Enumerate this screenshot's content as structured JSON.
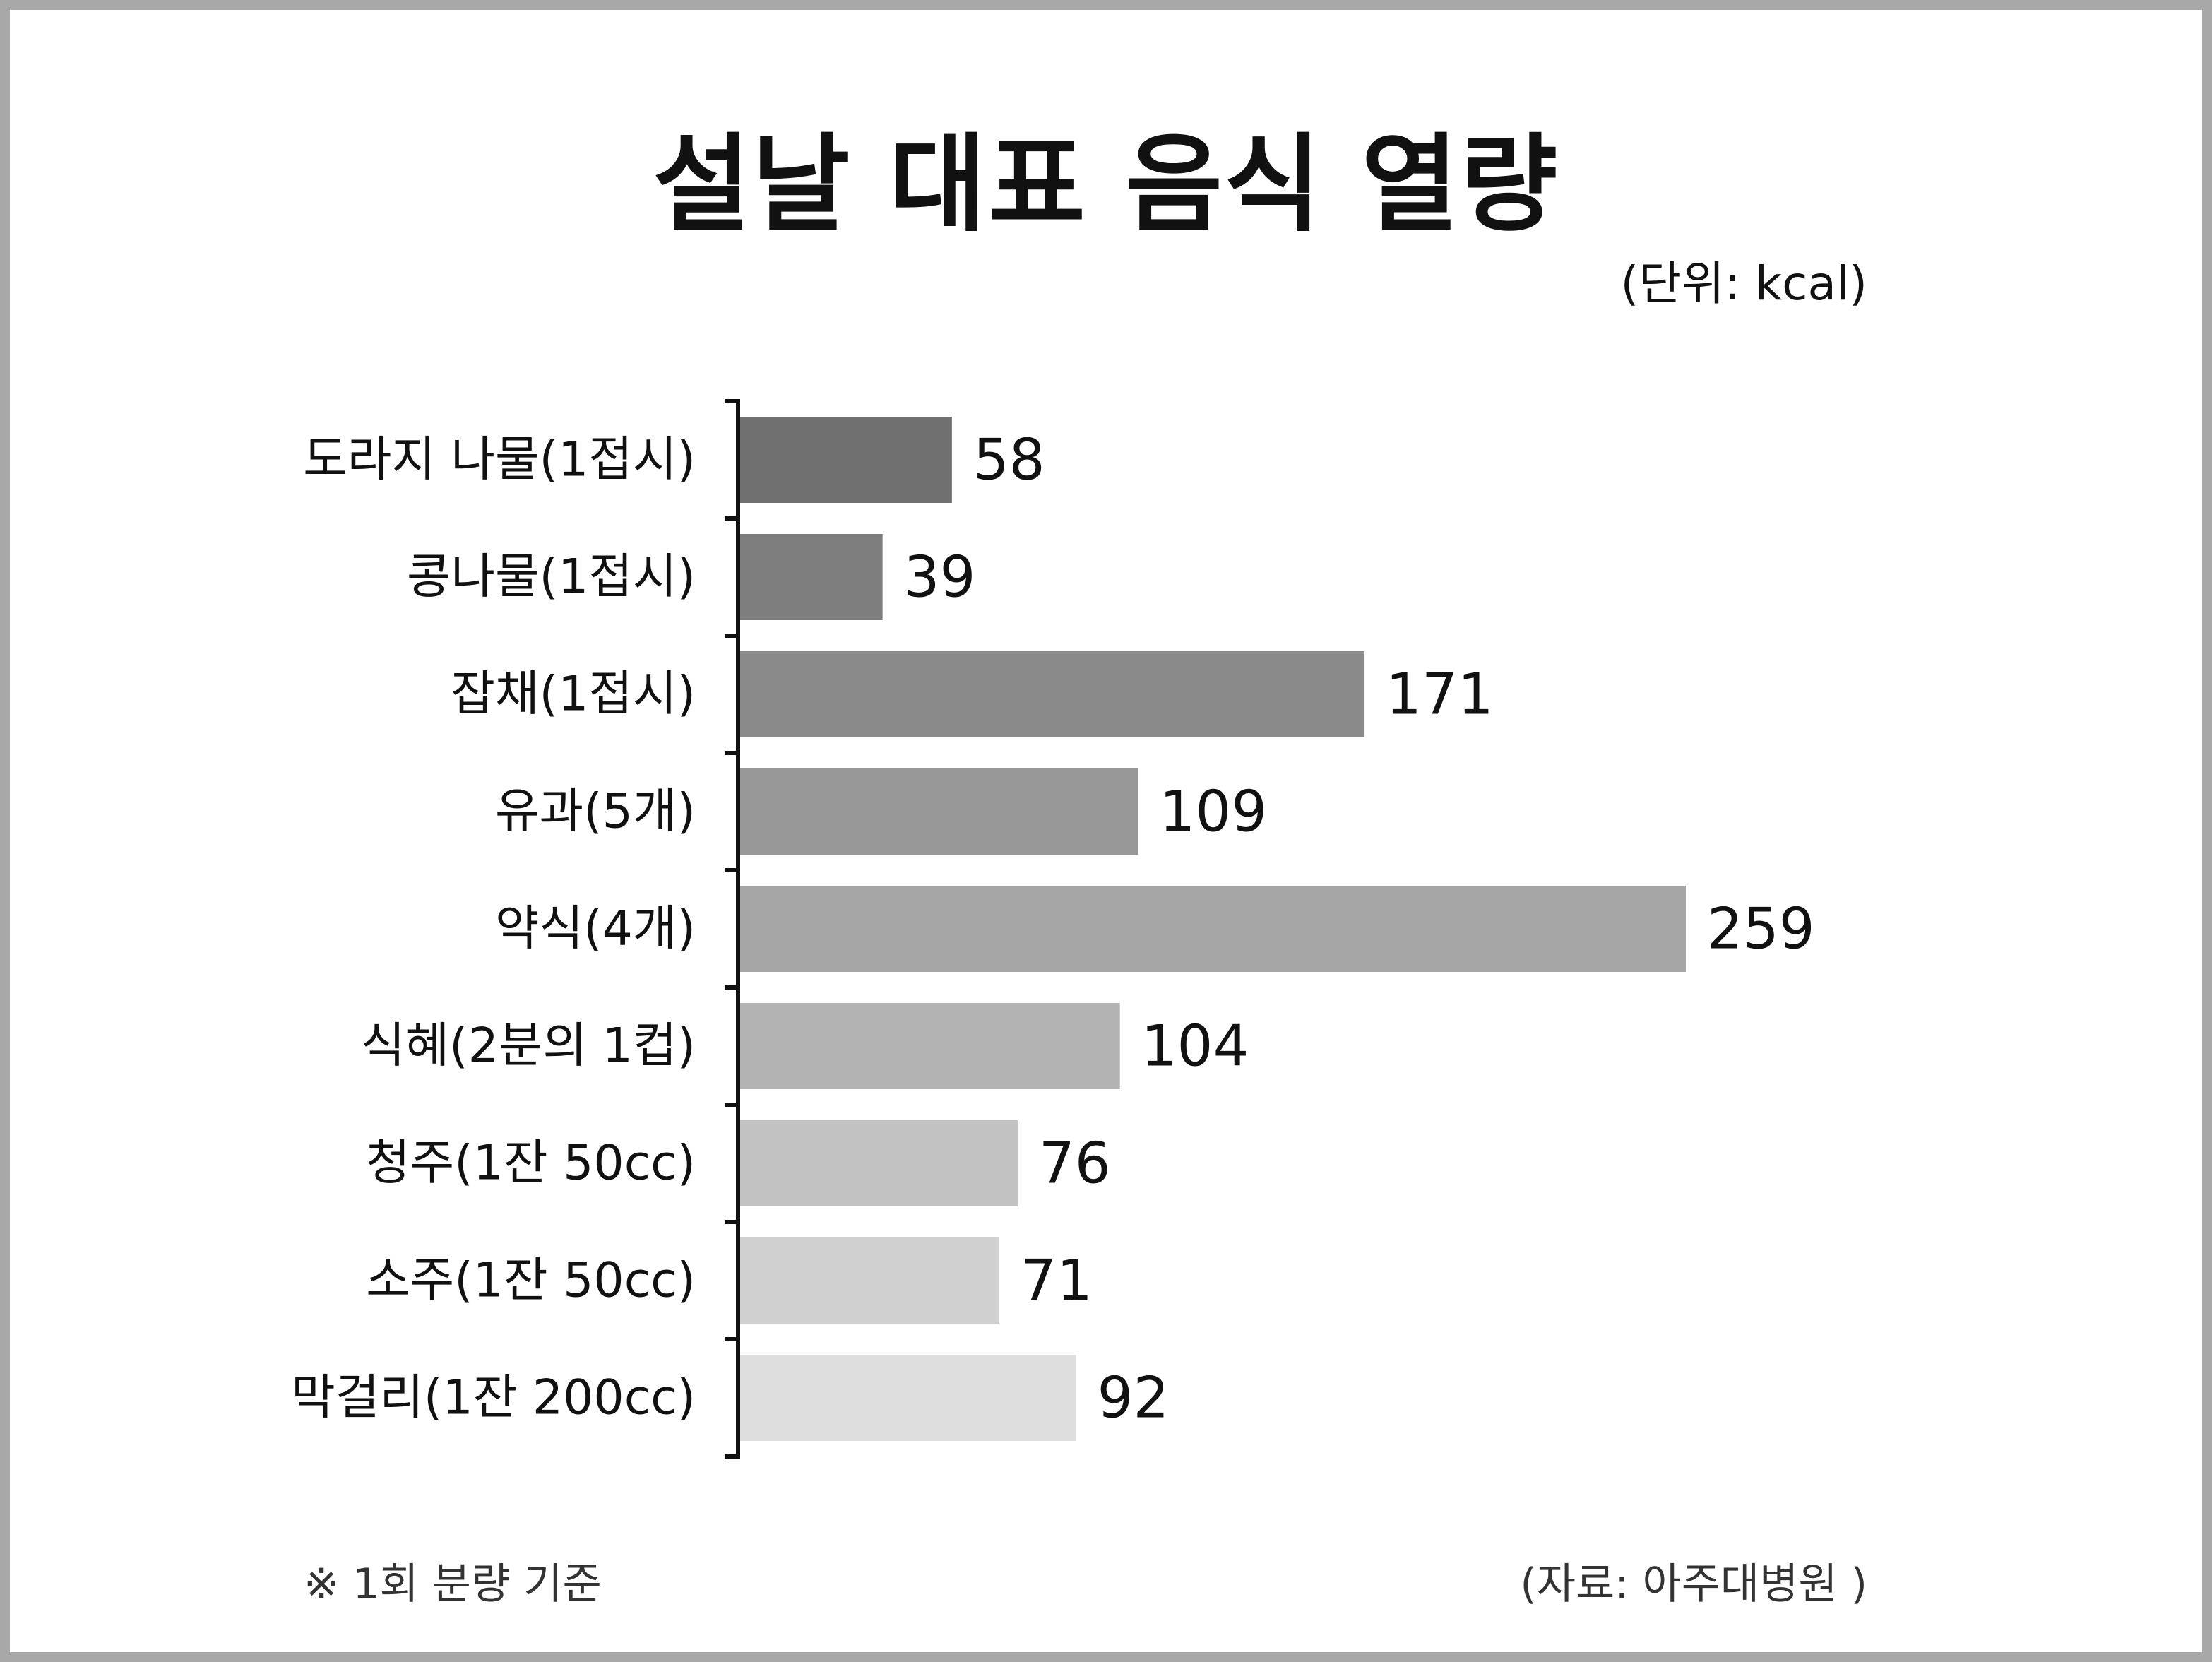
{
  "chart_data": {
    "type": "bar",
    "orientation": "horizontal",
    "title": "설날 대표 음식 열량",
    "unit_label": "(단위: kcal)",
    "categories": [
      "도라지 나물(1접시)",
      "콩나물(1접시)",
      "잡채(1접시)",
      "유과(5개)",
      "약식(4개)",
      "식혜(2분의 1컵)",
      "청주(1잔 50cc)",
      "소주(1잔 50cc)",
      "막걸리(1잔 200cc)"
    ],
    "values": [
      58,
      39,
      171,
      109,
      259,
      104,
      76,
      71,
      92
    ],
    "bar_colors": [
      "#707070",
      "#7d7d7d",
      "#8a8a8a",
      "#989898",
      "#a5a5a5",
      "#b3b3b3",
      "#c2c2c2",
      "#d0d0d0",
      "#dedede"
    ],
    "xlim": [
      0,
      259
    ],
    "grid": false,
    "legend": "none"
  },
  "footnote": "※ 1회 분량 기준",
  "source": "(자료: 아주대병원 )"
}
